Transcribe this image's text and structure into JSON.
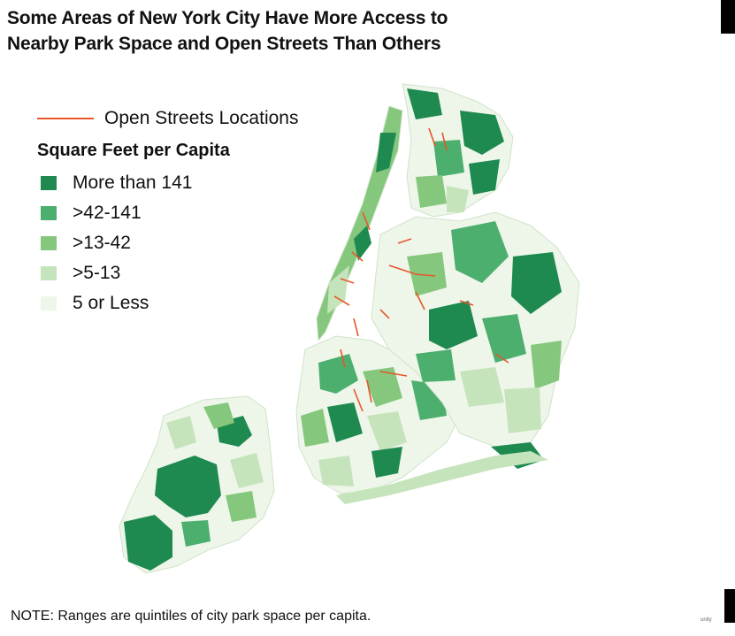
{
  "title_lines": [
    "Some Areas of New York City Have More Access to",
    "Nearby Park Space and Open Streets Than Others"
  ],
  "legend": {
    "open_streets_label": "Open Streets Locations",
    "open_streets_color": "#e8562b",
    "heading": "Square Feet per Capita",
    "items": [
      {
        "label": "More than 141",
        "color": "#1e8a4f"
      },
      {
        "label": ">42-141",
        "color": "#4caf6e"
      },
      {
        "label": ">13-42",
        "color": "#85c77c"
      },
      {
        "label": ">5-13",
        "color": "#c5e4bc"
      },
      {
        "label": "5 or Less",
        "color": "#eef6ea"
      }
    ]
  },
  "note": "NOTE: Ranges are quintiles of city park space per capita.",
  "credit": "unity"
}
